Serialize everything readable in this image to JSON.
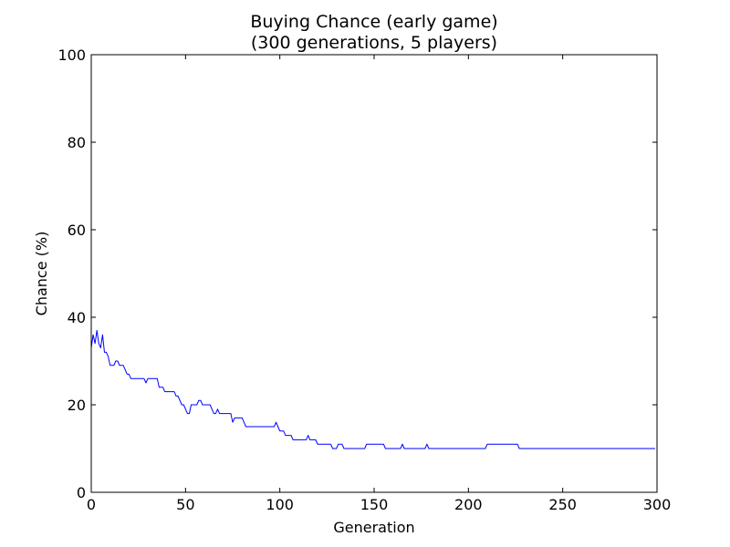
{
  "chart_data": {
    "type": "line",
    "title": "Buying Chance (early game)",
    "subtitle": "(300 generations, 5 players)",
    "xlabel": "Generation",
    "ylabel": "Chance (%)",
    "xlim": [
      0,
      300
    ],
    "ylim": [
      0,
      100
    ],
    "xticks": [
      "0",
      "50",
      "100",
      "150",
      "200",
      "250",
      "300"
    ],
    "yticks": [
      "0",
      "20",
      "40",
      "60",
      "80",
      "100"
    ],
    "grid": false,
    "legend": "none",
    "line_color": "#0000ff",
    "series": [
      {
        "values": [
          33,
          36,
          34,
          37,
          34,
          33,
          36,
          32,
          32,
          31,
          29,
          29,
          29,
          30,
          30,
          29,
          29,
          29,
          28,
          27,
          27,
          26,
          26,
          26,
          26,
          26,
          26,
          26,
          26,
          25,
          26,
          26,
          26,
          26,
          26,
          26,
          24,
          24,
          24,
          23,
          23,
          23,
          23,
          23,
          23,
          22,
          22,
          21,
          20,
          20,
          19,
          18,
          18,
          20,
          20,
          20,
          20,
          21,
          21,
          20,
          20,
          20,
          20,
          20,
          19,
          18,
          18,
          19,
          18,
          18,
          18,
          18,
          18,
          18,
          18,
          16,
          17,
          17,
          17,
          17,
          17,
          16,
          15,
          15,
          15,
          15,
          15,
          15,
          15,
          15,
          15,
          15,
          15,
          15,
          15,
          15,
          15,
          15,
          16,
          15,
          14,
          14,
          14,
          13,
          13,
          13,
          13,
          12,
          12,
          12,
          12,
          12,
          12,
          12,
          12,
          13,
          12,
          12,
          12,
          12,
          11,
          11,
          11,
          11,
          11,
          11,
          11,
          11,
          10,
          10,
          10,
          11,
          11,
          11,
          10,
          10,
          10,
          10,
          10,
          10,
          10,
          10,
          10,
          10,
          10,
          10,
          11,
          11,
          11,
          11,
          11,
          11,
          11,
          11,
          11,
          11,
          10,
          10,
          10,
          10,
          10,
          10,
          10,
          10,
          10,
          11,
          10,
          10,
          10,
          10,
          10,
          10,
          10,
          10,
          10,
          10,
          10,
          10,
          11,
          10,
          10,
          10,
          10,
          10,
          10,
          10,
          10,
          10,
          10,
          10,
          10,
          10,
          10,
          10,
          10,
          10,
          10,
          10,
          10,
          10,
          10,
          10,
          10,
          10,
          10,
          10,
          10,
          10,
          10,
          10,
          11,
          11,
          11,
          11,
          11,
          11,
          11,
          11,
          11,
          11,
          11,
          11,
          11,
          11,
          11,
          11,
          11,
          10,
          10,
          10,
          10,
          10,
          10,
          10,
          10,
          10,
          10,
          10,
          10,
          10,
          10,
          10,
          10,
          10,
          10,
          10,
          10,
          10,
          10,
          10,
          10,
          10,
          10,
          10,
          10,
          10,
          10,
          10,
          10,
          10,
          10,
          10,
          10,
          10,
          10,
          10,
          10,
          10,
          10,
          10,
          10,
          10,
          10,
          10,
          10,
          10,
          10,
          10,
          10,
          10,
          10,
          10,
          10,
          10,
          10,
          10,
          10,
          10,
          10,
          10,
          10,
          10,
          10,
          10,
          10,
          10,
          10,
          10,
          10,
          10
        ]
      }
    ]
  }
}
